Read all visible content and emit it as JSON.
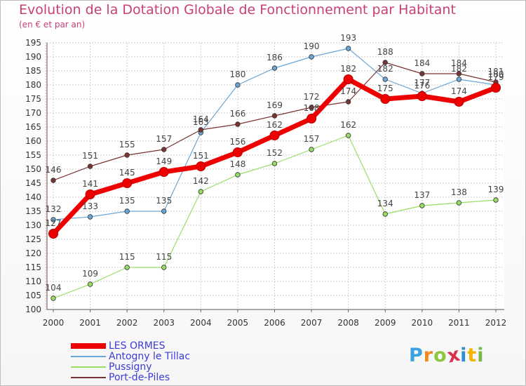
{
  "chart_data": {
    "type": "line",
    "title": "Evolution de la Dotation Globale de Fonctionnement par Habitant",
    "subtitle": "(en € et par an)",
    "xlabel": "",
    "ylabel": "",
    "ylim": [
      100,
      195
    ],
    "ytick_step": 5,
    "grid": true,
    "legend_position": "bottom-left",
    "x": [
      "2000",
      "2001",
      "2002",
      "2003",
      "2004",
      "2005",
      "2006",
      "2007",
      "2008",
      "2009",
      "2010",
      "2011",
      "2012"
    ],
    "series": [
      {
        "name": "LES ORMES",
        "color": "#ee0000",
        "values": [
          127,
          141,
          145,
          149,
          151,
          156,
          162,
          168,
          182,
          175,
          176,
          174,
          179
        ]
      },
      {
        "name": "Antogny le Tillac",
        "color": "#6aa6d6",
        "values": [
          132,
          133,
          135,
          135,
          163,
          180,
          186,
          190,
          193,
          182,
          177,
          182,
          180
        ]
      },
      {
        "name": "Pussigny",
        "color": "#99dd66",
        "values": [
          104,
          109,
          115,
          115,
          142,
          148,
          152,
          157,
          162,
          134,
          137,
          138,
          139
        ]
      },
      {
        "name": "Port-de-Piles",
        "color": "#7a3434",
        "values": [
          146,
          151,
          155,
          157,
          164,
          166,
          169,
          172,
          174,
          188,
          184,
          184,
          181
        ]
      }
    ]
  },
  "logo": {
    "letters": [
      "P",
      "r",
      "o",
      "x",
      "i",
      "t",
      "i"
    ],
    "colors": [
      "#3aa2de",
      "#f08a1c",
      "#8cc63e",
      "#d8324f",
      "#2b8fd6",
      "#f4b400",
      "#7ab648"
    ]
  }
}
